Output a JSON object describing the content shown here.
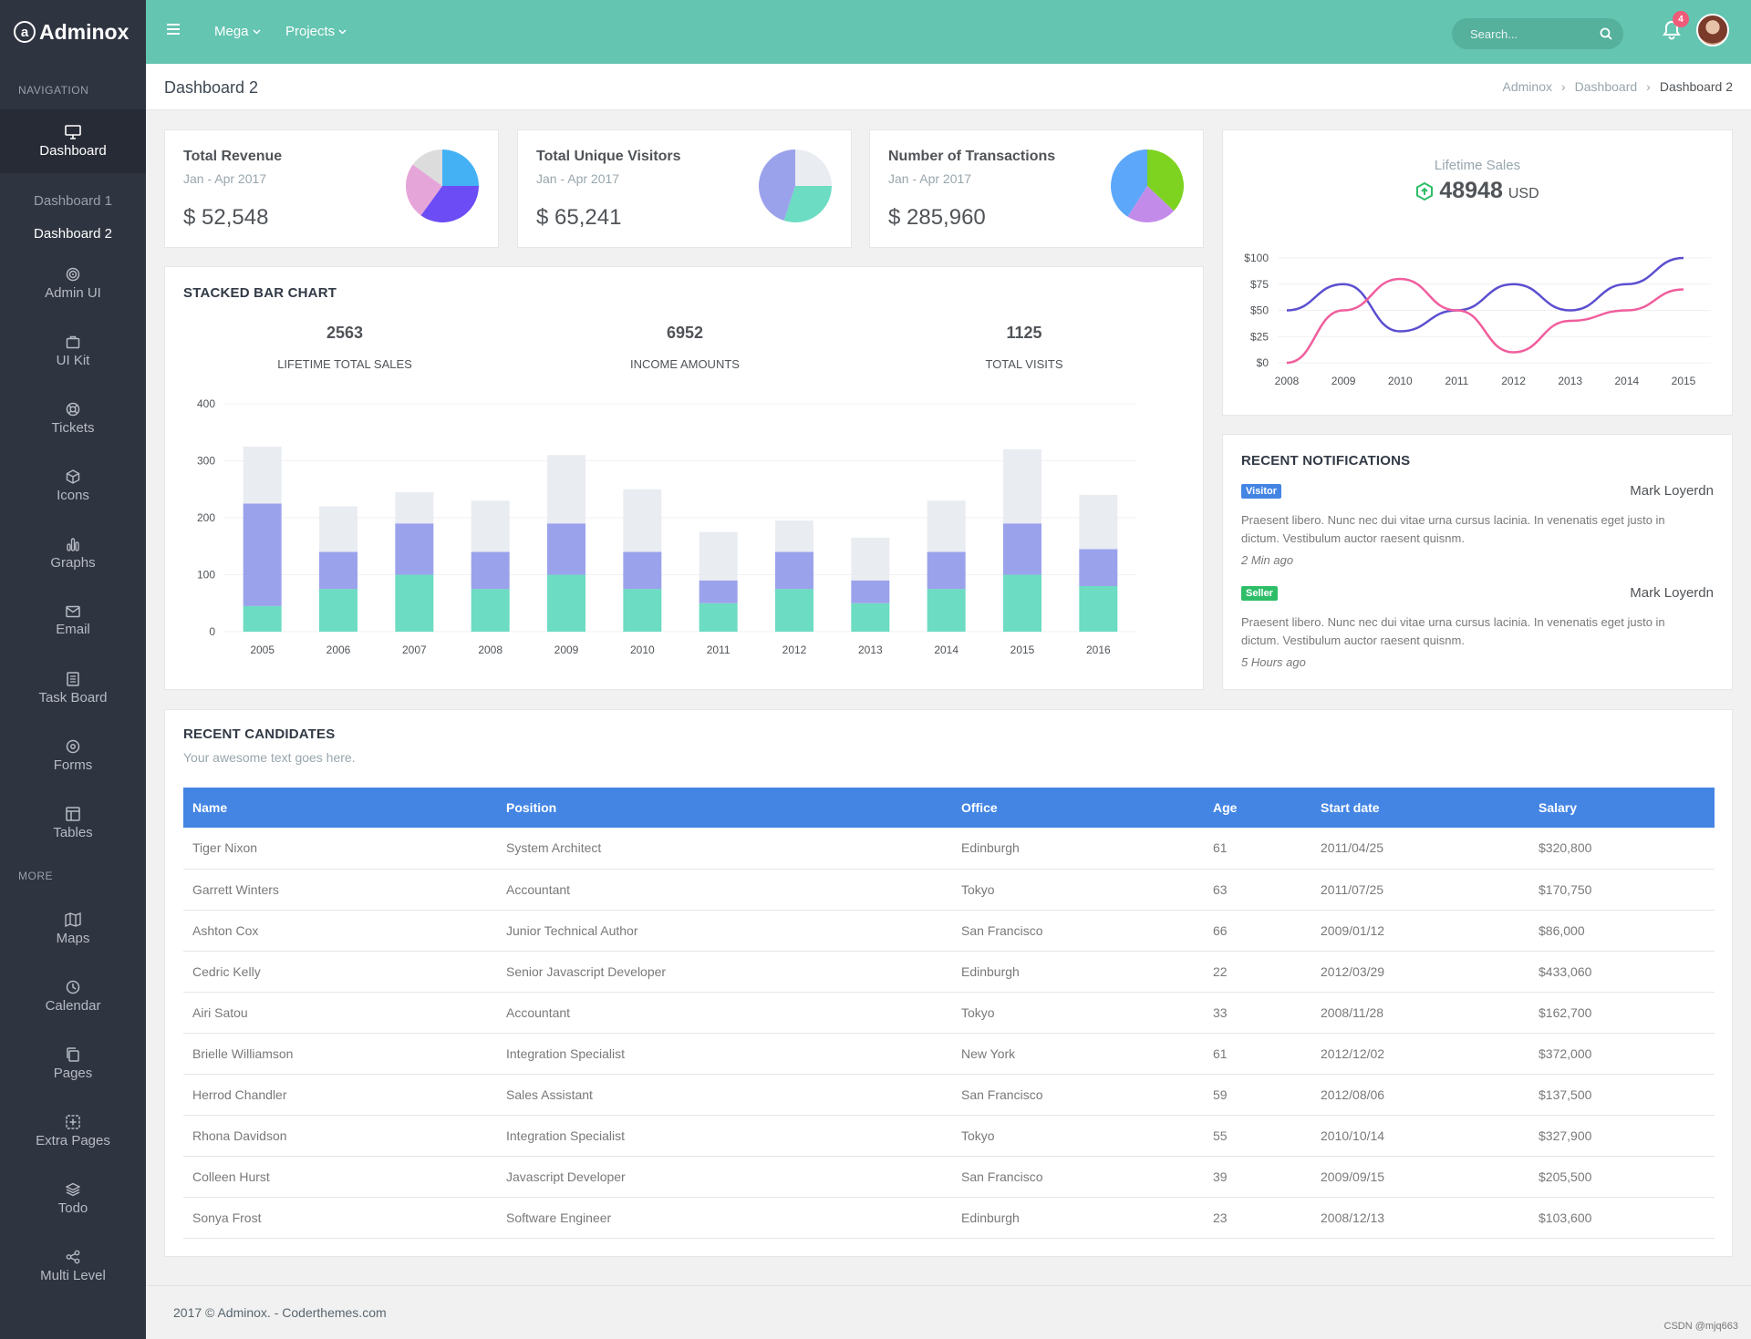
{
  "app": {
    "name": "Adminox",
    "logo_letter": "a"
  },
  "topbar": {
    "links": [
      "Mega",
      "Projects"
    ],
    "search_placeholder": "Search...",
    "notification_count": "4"
  },
  "sidebar": {
    "section_navigation": "NAVIGATION",
    "section_more": "MORE",
    "items": [
      {
        "label": "Dashboard",
        "icon": "monitor-icon",
        "active": true
      },
      {
        "label": "Admin UI",
        "icon": "target-icon"
      },
      {
        "label": "UI Kit",
        "icon": "briefcase-icon"
      },
      {
        "label": "Tickets",
        "icon": "lifebuoy-icon"
      },
      {
        "label": "Icons",
        "icon": "cube-icon"
      },
      {
        "label": "Graphs",
        "icon": "bar-chart-icon"
      },
      {
        "label": "Email",
        "icon": "mail-icon"
      },
      {
        "label": "Task Board",
        "icon": "document-icon"
      },
      {
        "label": "Forms",
        "icon": "circle-dot-icon"
      },
      {
        "label": "Tables",
        "icon": "layout-icon"
      }
    ],
    "sub_items": [
      {
        "label": "Dashboard 1"
      },
      {
        "label": "Dashboard 2",
        "active": true
      }
    ],
    "more_items": [
      {
        "label": "Maps",
        "icon": "map-icon"
      },
      {
        "label": "Calendar",
        "icon": "clock-icon"
      },
      {
        "label": "Pages",
        "icon": "copy-icon"
      },
      {
        "label": "Extra Pages",
        "icon": "plus-square-icon"
      },
      {
        "label": "Todo",
        "icon": "layers-icon"
      },
      {
        "label": "Multi Level",
        "icon": "share-icon"
      }
    ]
  },
  "page": {
    "title": "Dashboard 2",
    "breadcrumb": [
      "Adminox",
      "Dashboard",
      "Dashboard 2"
    ]
  },
  "stats": [
    {
      "title": "Total Revenue",
      "period": "Jan - Apr 2017",
      "value": "$ 52,548",
      "pie": [
        {
          "v": 25,
          "c": "#44b1f5"
        },
        {
          "v": 35,
          "c": "#6c4cf5"
        },
        {
          "v": 25,
          "c": "#e6a5d9"
        },
        {
          "v": 15,
          "c": "#dcdcdc"
        }
      ]
    },
    {
      "title": "Total Unique Visitors",
      "period": "Jan - Apr 2017",
      "value": "$ 65,241",
      "pie": [
        {
          "v": 25,
          "c": "#e9edf2"
        },
        {
          "v": 30,
          "c": "#6cdcc2"
        },
        {
          "v": 45,
          "c": "#9ba2ec"
        }
      ]
    },
    {
      "title": "Number of Transactions",
      "period": "Jan - Apr 2017",
      "value": "$ 285,960",
      "pie": [
        {
          "v": 37,
          "c": "#7ed321"
        },
        {
          "v": 22,
          "c": "#c38be9"
        },
        {
          "v": 41,
          "c": "#5ca7f9"
        }
      ]
    }
  ],
  "stacked": {
    "title": "STACKED BAR CHART",
    "kpis": [
      {
        "value": "2563",
        "label": "Lifetime total sales"
      },
      {
        "value": "6952",
        "label": "Income amounts"
      },
      {
        "value": "1125",
        "label": "Total visits"
      }
    ]
  },
  "lifetime": {
    "title": "Lifetime Sales",
    "value": "48948",
    "unit": "USD"
  },
  "notifications": {
    "title": "RECENT NOTIFICATIONS",
    "items": [
      {
        "badge": "Visitor",
        "badge_color": "#4485e4",
        "name": "Mark Loyerdn",
        "text": "Praesent libero. Nunc nec dui vitae urna cursus lacinia. In venenatis eget justo in dictum. Vestibulum auctor raesent quisnm.",
        "time": "2 Min ago"
      },
      {
        "badge": "Seller",
        "badge_color": "#2ebe68",
        "name": "Mark Loyerdn",
        "text": "Praesent libero. Nunc nec dui vitae urna cursus lacinia. In venenatis eget justo in dictum. Vestibulum auctor raesent quisnm.",
        "time": "5 Hours ago"
      }
    ]
  },
  "candidates": {
    "title": "RECENT CANDIDATES",
    "subtitle": "Your awesome text goes here.",
    "columns": [
      "Name",
      "Position",
      "Office",
      "Age",
      "Start date",
      "Salary"
    ],
    "rows": [
      [
        "Tiger Nixon",
        "System Architect",
        "Edinburgh",
        "61",
        "2011/04/25",
        "$320,800"
      ],
      [
        "Garrett Winters",
        "Accountant",
        "Tokyo",
        "63",
        "2011/07/25",
        "$170,750"
      ],
      [
        "Ashton Cox",
        "Junior Technical Author",
        "San Francisco",
        "66",
        "2009/01/12",
        "$86,000"
      ],
      [
        "Cedric Kelly",
        "Senior Javascript Developer",
        "Edinburgh",
        "22",
        "2012/03/29",
        "$433,060"
      ],
      [
        "Airi Satou",
        "Accountant",
        "Tokyo",
        "33",
        "2008/11/28",
        "$162,700"
      ],
      [
        "Brielle Williamson",
        "Integration Specialist",
        "New York",
        "61",
        "2012/12/02",
        "$372,000"
      ],
      [
        "Herrod Chandler",
        "Sales Assistant",
        "San Francisco",
        "59",
        "2012/08/06",
        "$137,500"
      ],
      [
        "Rhona Davidson",
        "Integration Specialist",
        "Tokyo",
        "55",
        "2010/10/14",
        "$327,900"
      ],
      [
        "Colleen Hurst",
        "Javascript Developer",
        "San Francisco",
        "39",
        "2009/09/15",
        "$205,500"
      ],
      [
        "Sonya Frost",
        "Software Engineer",
        "Edinburgh",
        "23",
        "2008/12/13",
        "$103,600"
      ]
    ]
  },
  "footer": {
    "text": "2017 © Adminox. - Coderthemes.com",
    "watermark": "CSDN @mjq663"
  },
  "chart_data": [
    {
      "type": "bar",
      "stacked": true,
      "categories": [
        "2005",
        "2006",
        "2007",
        "2008",
        "2009",
        "2010",
        "2011",
        "2012",
        "2013",
        "2014",
        "2015",
        "2016"
      ],
      "series": [
        {
          "values": [
            45,
            75,
            100,
            75,
            100,
            75,
            50,
            75,
            50,
            75,
            100,
            80
          ],
          "color": "#6cdcc2"
        },
        {
          "values": [
            180,
            65,
            90,
            65,
            90,
            65,
            40,
            65,
            40,
            65,
            90,
            65
          ],
          "color": "#9ba2ec"
        },
        {
          "values": [
            100,
            80,
            55,
            90,
            120,
            110,
            85,
            55,
            75,
            90,
            130,
            95
          ],
          "color": "#e9edf2"
        }
      ],
      "yticks": [
        0,
        100,
        200,
        300,
        400
      ],
      "ylim": [
        0,
        400
      ]
    },
    {
      "type": "line",
      "x": [
        "2008",
        "2009",
        "2010",
        "2011",
        "2012",
        "2013",
        "2014",
        "2015"
      ],
      "series": [
        {
          "values": [
            50,
            75,
            30,
            50,
            75,
            50,
            75,
            100
          ],
          "color": "#5b4fcf"
        },
        {
          "values": [
            0,
            50,
            80,
            50,
            10,
            40,
            50,
            70
          ],
          "color": "#f05e9d"
        }
      ],
      "yticks": [
        "$0",
        "$25",
        "$50",
        "$75",
        "$100"
      ],
      "ylim": [
        0,
        100
      ]
    }
  ]
}
